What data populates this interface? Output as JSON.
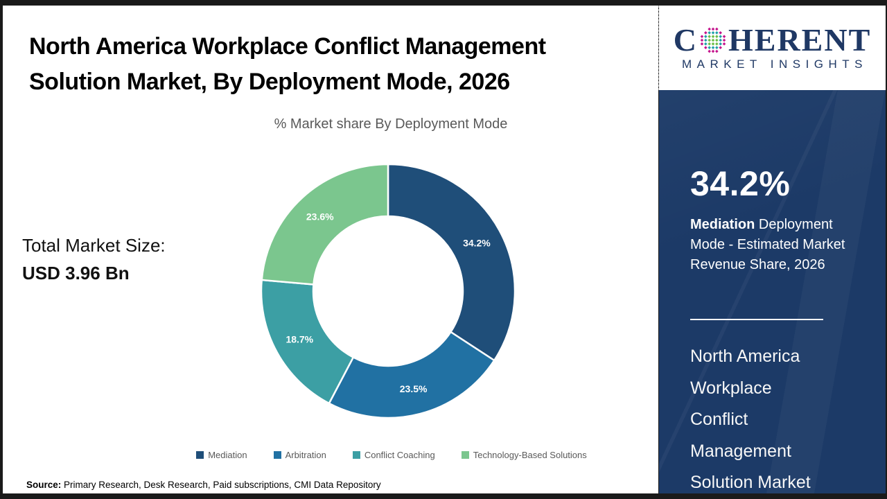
{
  "header": {
    "title_line1": "North America Workplace Conflict Management",
    "title_line2": "Solution Market, By Deployment Mode, 2026",
    "subtitle": "% Market share By Deployment Mode"
  },
  "total_market": {
    "label": "Total Market Size:",
    "value": "USD 3.96 Bn"
  },
  "chart_data": {
    "type": "pie",
    "subtype": "donut",
    "title": "% Market share By Deployment Mode",
    "categories": [
      "Mediation",
      "Arbitration",
      "Conflict Coaching",
      "Technology-Based Solutions"
    ],
    "values": [
      34.2,
      23.5,
      18.7,
      23.6
    ],
    "data_labels": [
      "34.2%",
      "23.5%",
      "18.7%",
      "23.6%"
    ],
    "colors": [
      "#1F4E79",
      "#2171A3",
      "#3C9FA4",
      "#7BC68E"
    ],
    "start_angle_deg": 0,
    "direction": "clockwise",
    "inner_radius_ratio": 0.59,
    "slice_gap_color": "#ffffff",
    "legend_position": "bottom",
    "total_market_size": "USD 3.96 Bn"
  },
  "source_note": {
    "label": "Source:",
    "text": " Primary Research, Desk Research, Paid subscriptions, CMI Data Repository"
  },
  "sidebar": {
    "logo": {
      "brand_prefix": "C",
      "brand_suffix": "HERENT",
      "subtitle": "MARKET INSIGHTS",
      "navy": "#1F3864",
      "globe_dot_colors": {
        "inner": "#6CBE45",
        "mid": "#1FA0A8",
        "outer": "#C4148C"
      }
    },
    "panel_color": "#1C3A67",
    "highlight": {
      "value": "34.2%",
      "desc_bold": "Mediation",
      "desc_rest": " Deployment Mode - Estimated Market Revenue Share, 2026"
    },
    "report_title_lines": [
      "North America",
      "Workplace",
      "Conflict",
      "Management",
      "Solution Market"
    ]
  }
}
